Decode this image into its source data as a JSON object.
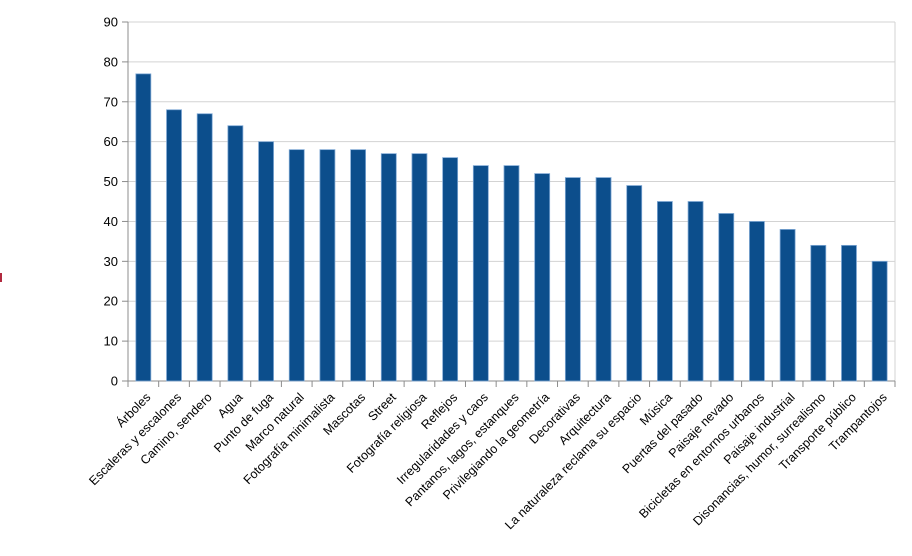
{
  "chart_data": {
    "type": "bar",
    "title": "",
    "xlabel": "",
    "ylabel": "",
    "categories": [
      "Árboles",
      "Escaleras y escalones",
      "Camino, sendero",
      "Agua",
      "Punto de fuga",
      "Marco natural",
      "Fotografía minimalista",
      "Mascotas",
      "Street",
      "Fotografía religiosa",
      "Reflejos",
      "Irregularidades y caos",
      "Pantanos, lagos, estanques",
      "Privilegiando la geometría",
      "Decorativas",
      "Arquitectura",
      "La naturaleza reclama su espacio",
      "Música",
      "Puertas del pasado",
      "Paisaje nevado",
      "Bicicletas en entornos urbanos",
      "Paisaje industrial",
      "Disonancias, humor, surrealismo",
      "Transporte público",
      "Trampantojos"
    ],
    "values": [
      77,
      68,
      67,
      64,
      60,
      58,
      58,
      58,
      57,
      57,
      56,
      54,
      54,
      52,
      51,
      51,
      49,
      45,
      45,
      42,
      40,
      38,
      34,
      34,
      30
    ],
    "ylim": [
      0,
      90
    ],
    "ytick_step": 10,
    "ytick_labels": [
      "0",
      "10",
      "20",
      "30",
      "40",
      "50",
      "60",
      "70",
      "80",
      "90"
    ],
    "grid": true,
    "legend": "none",
    "x_label_rotation_deg": 45,
    "colors": {
      "bar_fill": "#0C4E8C",
      "bar_border": "#7FA8D4",
      "gridline": "#D3D3D3",
      "axis_line": "#8C8C8C",
      "plot_border": "#D3D3D3",
      "label_text": "#000000",
      "background": "#FFFFFF"
    }
  },
  "artifacts": {
    "clipped_red_mark": {
      "description": "small red fragment clipped at the left edge of the image",
      "color": "#B1293E"
    }
  }
}
